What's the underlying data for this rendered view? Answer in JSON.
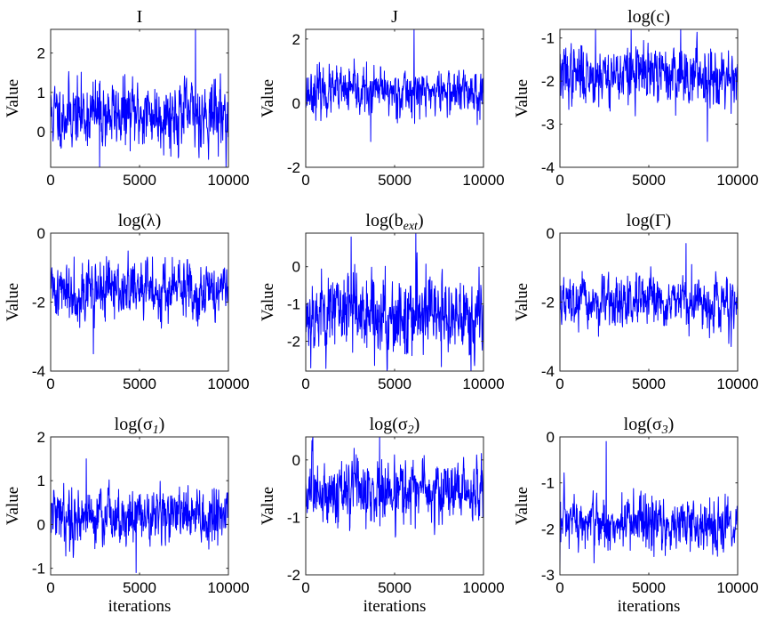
{
  "chart_data": [
    {
      "type": "line",
      "title": "I",
      "title_parts": [
        {
          "t": "I"
        }
      ],
      "xlabel": "",
      "ylabel": "Value",
      "xlim": [
        0,
        10000
      ],
      "ylim": [
        -0.9,
        2.6
      ],
      "xticks": [
        0,
        5000,
        10000
      ],
      "yticks": [
        0,
        1,
        2
      ],
      "x_tick_labels": [
        "0",
        "5000",
        "10000"
      ],
      "y_tick_labels": [
        "0",
        "1",
        "2"
      ],
      "series": [
        {
          "name": "I",
          "color": "#0000ff",
          "n_points": 10000,
          "mean": 0.45,
          "std": 0.42,
          "min": -0.9,
          "max": 2.6,
          "seed": 11,
          "spikes": [
            {
              "x": 8150,
              "y": 2.6
            },
            {
              "x": 2750,
              "y": -0.9
            }
          ]
        }
      ]
    },
    {
      "type": "line",
      "title": "J",
      "title_parts": [
        {
          "t": "J"
        }
      ],
      "xlabel": "",
      "ylabel": "Value",
      "xlim": [
        0,
        10000
      ],
      "ylim": [
        -2,
        2.3
      ],
      "xticks": [
        0,
        5000,
        10000
      ],
      "yticks": [
        -2,
        0,
        2
      ],
      "x_tick_labels": [
        "0",
        "5000",
        "10000"
      ],
      "y_tick_labels": [
        "-2",
        "0",
        "2"
      ],
      "series": [
        {
          "name": "J",
          "color": "#0000ff",
          "n_points": 10000,
          "mean": 0.35,
          "std": 0.35,
          "min": -1.2,
          "max": 2.3,
          "seed": 23,
          "spikes": [
            {
              "x": 6100,
              "y": 2.3
            },
            {
              "x": 3650,
              "y": -1.2
            }
          ]
        }
      ]
    },
    {
      "type": "line",
      "title": "log(c)",
      "title_parts": [
        {
          "t": "log(c)"
        }
      ],
      "xlabel": "",
      "ylabel": "Value",
      "xlim": [
        0,
        10000
      ],
      "ylim": [
        -4,
        -0.8
      ],
      "xticks": [
        0,
        5000,
        10000
      ],
      "yticks": [
        -4,
        -3,
        -2,
        -1
      ],
      "x_tick_labels": [
        "0",
        "5000",
        "10000"
      ],
      "y_tick_labels": [
        "-4",
        "-3",
        "-2",
        "-1"
      ],
      "series": [
        {
          "name": "log(c)",
          "color": "#0000ff",
          "n_points": 10000,
          "mean": -1.85,
          "std": 0.33,
          "min": -3.4,
          "max": -0.8,
          "seed": 37,
          "spikes": [
            {
              "x": 2000,
              "y": -0.8
            },
            {
              "x": 4000,
              "y": -0.8
            },
            {
              "x": 6800,
              "y": -0.8
            },
            {
              "x": 8300,
              "y": -3.4
            }
          ]
        }
      ]
    },
    {
      "type": "line",
      "title": "log(λ)",
      "title_parts": [
        {
          "t": "log(λ)"
        }
      ],
      "xlabel": "",
      "ylabel": "Value",
      "xlim": [
        0,
        10000
      ],
      "ylim": [
        -4,
        0
      ],
      "xticks": [
        0,
        5000,
        10000
      ],
      "yticks": [
        -4,
        -2,
        0
      ],
      "x_tick_labels": [
        "0",
        "5000",
        "10000"
      ],
      "y_tick_labels": [
        "-4",
        "-2",
        "0"
      ],
      "series": [
        {
          "name": "log(λ)",
          "color": "#0000ff",
          "n_points": 10000,
          "mean": -1.65,
          "std": 0.42,
          "min": -3.5,
          "max": -0.5,
          "seed": 41,
          "spikes": [
            {
              "x": 2400,
              "y": -3.5
            }
          ]
        }
      ]
    },
    {
      "type": "line",
      "title": "log(b_ext)",
      "title_parts": [
        {
          "t": "log(b"
        },
        {
          "t": "ext",
          "sub": true
        },
        {
          "t": ")"
        }
      ],
      "xlabel": "",
      "ylabel": "Value",
      "xlim": [
        0,
        10000
      ],
      "ylim": [
        -2.8,
        0.9
      ],
      "xticks": [
        0,
        5000,
        10000
      ],
      "yticks": [
        -2,
        -1,
        0
      ],
      "x_tick_labels": [
        "0",
        "5000",
        "10000"
      ],
      "y_tick_labels": [
        "-2",
        "-1",
        "0"
      ],
      "series": [
        {
          "name": "log(b_ext)",
          "color": "#0000ff",
          "n_points": 10000,
          "mean": -1.25,
          "std": 0.55,
          "min": -2.8,
          "max": 0.9,
          "seed": 53,
          "spikes": [
            {
              "x": 2550,
              "y": 0.8
            },
            {
              "x": 6200,
              "y": 0.9
            },
            {
              "x": 9300,
              "y": -2.8
            }
          ]
        }
      ]
    },
    {
      "type": "line",
      "title": "log(Γ)",
      "title_parts": [
        {
          "t": "log(Γ)"
        }
      ],
      "xlabel": "",
      "ylabel": "Value",
      "xlim": [
        0,
        10000
      ],
      "ylim": [
        -4,
        0
      ],
      "xticks": [
        0,
        5000,
        10000
      ],
      "yticks": [
        -4,
        -2,
        0
      ],
      "x_tick_labels": [
        "0",
        "5000",
        "10000"
      ],
      "y_tick_labels": [
        "-4",
        "-2",
        "0"
      ],
      "series": [
        {
          "name": "log(Γ)",
          "color": "#0000ff",
          "n_points": 10000,
          "mean": -2.05,
          "std": 0.35,
          "min": -3.6,
          "max": -0.3,
          "seed": 67,
          "spikes": [
            {
              "x": 7100,
              "y": -0.3
            }
          ]
        }
      ]
    },
    {
      "type": "line",
      "title": "log(σ1)",
      "title_parts": [
        {
          "t": "log(σ"
        },
        {
          "t": "1",
          "sub": true
        },
        {
          "t": ")"
        }
      ],
      "xlabel": "iterations",
      "ylabel": "Value",
      "xlim": [
        0,
        10000
      ],
      "ylim": [
        -1.15,
        2
      ],
      "xticks": [
        0,
        5000,
        10000
      ],
      "yticks": [
        -1,
        0,
        1,
        2
      ],
      "x_tick_labels": [
        "0",
        "5000",
        "10000"
      ],
      "y_tick_labels": [
        "-1",
        "0",
        "1",
        "2"
      ],
      "series": [
        {
          "name": "log(σ1)",
          "color": "#0000ff",
          "n_points": 10000,
          "mean": 0.2,
          "std": 0.32,
          "min": -1.1,
          "max": 1.5,
          "seed": 79,
          "spikes": [
            {
              "x": 2000,
              "y": 1.5
            },
            {
              "x": 4800,
              "y": -1.1
            }
          ]
        }
      ]
    },
    {
      "type": "line",
      "title": "log(σ2)",
      "title_parts": [
        {
          "t": "log(σ"
        },
        {
          "t": "2",
          "sub": true
        },
        {
          "t": ")"
        }
      ],
      "xlabel": "iterations",
      "ylabel": "Value",
      "xlim": [
        0,
        10000
      ],
      "ylim": [
        -2,
        0.4
      ],
      "xticks": [
        0,
        5000,
        10000
      ],
      "yticks": [
        -2,
        -1,
        0
      ],
      "x_tick_labels": [
        "0",
        "5000",
        "10000"
      ],
      "y_tick_labels": [
        "-2",
        "-1",
        "0"
      ],
      "series": [
        {
          "name": "log(σ2)",
          "color": "#0000ff",
          "n_points": 10000,
          "mean": -0.55,
          "std": 0.28,
          "min": -1.4,
          "max": 0.4,
          "seed": 83,
          "spikes": [
            {
              "x": 4150,
              "y": 0.4
            }
          ]
        }
      ]
    },
    {
      "type": "line",
      "title": "log(σ3)",
      "title_parts": [
        {
          "t": "log(σ"
        },
        {
          "t": "3",
          "sub": true
        },
        {
          "t": ")"
        }
      ],
      "xlabel": "iterations",
      "ylabel": "Value",
      "xlim": [
        0,
        10000
      ],
      "ylim": [
        -3,
        0
      ],
      "xticks": [
        0,
        5000,
        10000
      ],
      "yticks": [
        -3,
        -2,
        -1,
        0
      ],
      "x_tick_labels": [
        "0",
        "5000",
        "10000"
      ],
      "y_tick_labels": [
        "-3",
        "-2",
        "-1",
        "0"
      ],
      "series": [
        {
          "name": "log(σ3)",
          "color": "#0000ff",
          "n_points": 10000,
          "mean": -1.9,
          "std": 0.3,
          "min": -2.9,
          "max": -0.1,
          "seed": 97,
          "spikes": [
            {
              "x": 2600,
              "y": -0.1
            },
            {
              "x": 0,
              "y": -2.9
            }
          ]
        }
      ]
    }
  ]
}
